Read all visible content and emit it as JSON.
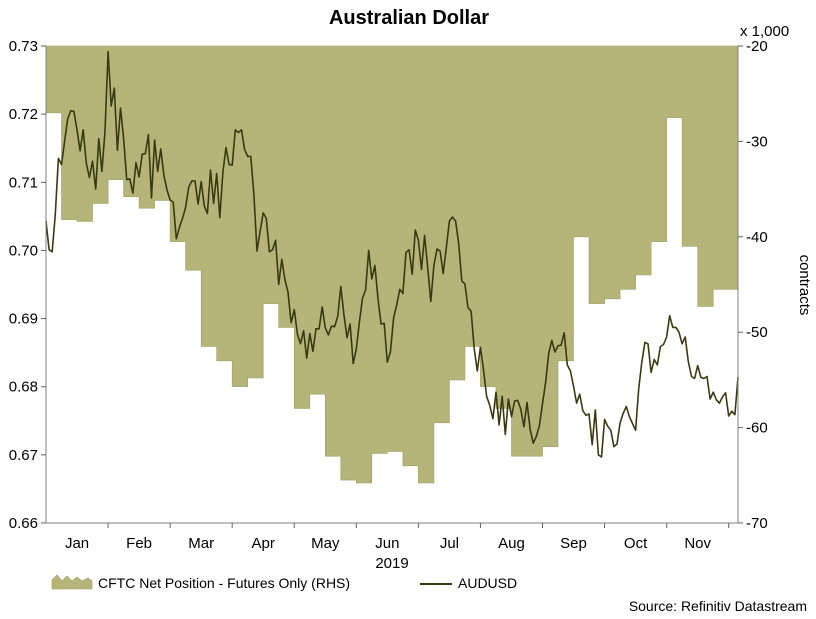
{
  "chart_data": {
    "type": "area+line",
    "title": "Australian Dollar",
    "year_label": "2019",
    "rhs_unit_label": "x 1,000",
    "rhs_axis_label": "contracts",
    "source": "Source: Refinitiv Datastream",
    "x_range": [
      0,
      11.15
    ],
    "x_ticks": [
      "Jan",
      "Feb",
      "Mar",
      "Apr",
      "May",
      "Jun",
      "Jul",
      "Aug",
      "Sep",
      "Oct",
      "Nov"
    ],
    "lhs": {
      "range": [
        0.66,
        0.73
      ],
      "ticks": [
        "0.73",
        "0.72",
        "0.71",
        "0.70",
        "0.69",
        "0.68",
        "0.67",
        "0.66"
      ],
      "tick_values": [
        0.73,
        0.72,
        0.71,
        0.7,
        0.69,
        0.68,
        0.67,
        0.66
      ]
    },
    "rhs": {
      "range": [
        -70,
        -20
      ],
      "ticks": [
        "-20",
        "-30",
        "-40",
        "-50",
        "-60",
        "-70"
      ],
      "tick_values": [
        -20,
        -30,
        -40,
        -50,
        -60,
        -70
      ]
    },
    "colors": {
      "area_fill": "#b5b579",
      "area_edge": "#9e9e5e",
      "line": "#3a3a12",
      "axis": "#808080",
      "tick": "#606060"
    },
    "series": [
      {
        "name": "CFTC Net Position - Futures Only (RHS)",
        "axis": "right",
        "kind": "area",
        "x": [
          0.0,
          0.25,
          0.25,
          0.5,
          0.5,
          0.75,
          0.75,
          1.0,
          1.0,
          1.25,
          1.25,
          1.5,
          1.5,
          1.75,
          1.75,
          2.0,
          2.0,
          2.25,
          2.25,
          2.5,
          2.5,
          2.75,
          2.75,
          3.0,
          3.0,
          3.25,
          3.25,
          3.5,
          3.5,
          3.75,
          3.75,
          4.0,
          4.0,
          4.25,
          4.25,
          4.5,
          4.5,
          4.75,
          4.75,
          5.0,
          5.0,
          5.25,
          5.25,
          5.5,
          5.5,
          5.75,
          5.75,
          6.0,
          6.0,
          6.25,
          6.25,
          6.5,
          6.5,
          6.75,
          6.75,
          7.0,
          7.0,
          7.25,
          7.25,
          7.5,
          7.5,
          7.75,
          7.75,
          8.0,
          8.0,
          8.25,
          8.25,
          8.5,
          8.5,
          8.75,
          8.75,
          9.0,
          9.0,
          9.25,
          9.25,
          9.5,
          9.5,
          9.75,
          9.75,
          10.0,
          10.0,
          10.25,
          10.25,
          10.5,
          10.5,
          10.75,
          10.75,
          11.0,
          11.0,
          11.15
        ],
        "values": [
          -27.0,
          -27.0,
          -38.2,
          -38.2,
          -38.4,
          -38.4,
          -36.5,
          -36.5,
          -34.0,
          -34.0,
          -35.8,
          -35.8,
          -37.0,
          -37.0,
          -36.2,
          -36.2,
          -40.5,
          -40.5,
          -43.5,
          -43.5,
          -51.5,
          -51.5,
          -53.0,
          -53.0,
          -55.7,
          -55.7,
          -54.8,
          -54.8,
          -47.0,
          -47.0,
          -49.5,
          -49.5,
          -58.0,
          -58.0,
          -56.5,
          -56.5,
          -63.0,
          -63.0,
          -65.5,
          -65.5,
          -65.8,
          -65.8,
          -62.7,
          -62.7,
          -62.5,
          -62.5,
          -64.0,
          -64.0,
          -65.8,
          -65.8,
          -59.5,
          -59.5,
          -55.0,
          -55.0,
          -51.5,
          -51.5,
          -55.7,
          -55.7,
          -58.0,
          -58.0,
          -63.0,
          -63.0,
          -63.0,
          -63.0,
          -62.0,
          -62.0,
          -53.0,
          -53.0,
          -40.0,
          -40.0,
          -47.0,
          -47.0,
          -46.5,
          -46.5,
          -45.5,
          -45.5,
          -44.0,
          -44.0,
          -40.5,
          -40.5,
          -27.5,
          -27.5,
          -41.0,
          -41.0,
          -47.3,
          -47.3,
          -45.5,
          -45.5,
          -45.5,
          -45.5
        ]
      },
      {
        "name": "AUDUSD",
        "axis": "left",
        "kind": "line",
        "x": [
          0.0,
          0.05,
          0.1,
          0.15,
          0.2,
          0.25,
          0.3,
          0.35,
          0.4,
          0.45,
          0.5,
          0.55,
          0.6,
          0.65,
          0.7,
          0.75,
          0.8,
          0.85,
          0.9,
          0.95,
          1.0,
          1.05,
          1.1,
          1.15,
          1.2,
          1.25,
          1.3,
          1.35,
          1.4,
          1.45,
          1.5,
          1.55,
          1.6,
          1.65,
          1.7,
          1.75,
          1.8,
          1.85,
          1.9,
          1.95,
          2.0,
          2.05,
          2.1,
          2.15,
          2.2,
          2.25,
          2.3,
          2.35,
          2.4,
          2.45,
          2.5,
          2.55,
          2.6,
          2.65,
          2.7,
          2.75,
          2.8,
          2.85,
          2.9,
          2.95,
          3.0,
          3.05,
          3.1,
          3.15,
          3.2,
          3.25,
          3.3,
          3.35,
          3.4,
          3.45,
          3.5,
          3.55,
          3.6,
          3.65,
          3.7,
          3.75,
          3.8,
          3.85,
          3.9,
          3.95,
          4.0,
          4.05,
          4.1,
          4.15,
          4.2,
          4.25,
          4.3,
          4.35,
          4.4,
          4.45,
          4.5,
          4.55,
          4.6,
          4.65,
          4.7,
          4.75,
          4.8,
          4.85,
          4.9,
          4.95,
          5.0,
          5.05,
          5.1,
          5.15,
          5.2,
          5.25,
          5.3,
          5.35,
          5.4,
          5.45,
          5.5,
          5.55,
          5.6,
          5.65,
          5.7,
          5.75,
          5.8,
          5.85,
          5.9,
          5.95,
          6.0,
          6.05,
          6.1,
          6.15,
          6.2,
          6.25,
          6.3,
          6.35,
          6.4,
          6.45,
          6.5,
          6.55,
          6.6,
          6.65,
          6.7,
          6.75,
          6.8,
          6.85,
          6.9,
          6.95,
          7.0,
          7.05,
          7.1,
          7.15,
          7.2,
          7.25,
          7.3,
          7.35,
          7.4,
          7.45,
          7.5,
          7.55,
          7.6,
          7.65,
          7.7,
          7.75,
          7.8,
          7.85,
          7.9,
          7.95,
          8.0,
          8.05,
          8.1,
          8.15,
          8.2,
          8.25,
          8.3,
          8.35,
          8.4,
          8.45,
          8.5,
          8.55,
          8.6,
          8.65,
          8.7,
          8.75,
          8.8,
          8.85,
          8.9,
          8.95,
          9.0,
          9.05,
          9.1,
          9.15,
          9.2,
          9.25,
          9.3,
          9.35,
          9.4,
          9.45,
          9.5,
          9.55,
          9.6,
          9.65,
          9.7,
          9.75,
          9.8,
          9.85,
          9.9,
          9.95,
          10.0,
          10.05,
          10.1,
          10.15,
          10.2,
          10.25,
          10.3,
          10.35,
          10.4,
          10.45,
          10.5,
          10.55,
          10.6,
          10.65,
          10.7,
          10.75,
          10.8,
          10.85,
          10.9,
          10.95,
          11.0,
          11.05,
          11.1,
          11.15
        ],
        "values": [
          0.7043,
          0.7001,
          0.6998,
          0.7053,
          0.7135,
          0.7126,
          0.716,
          0.7193,
          0.7205,
          0.7204,
          0.7177,
          0.7146,
          0.7177,
          0.7128,
          0.7107,
          0.7131,
          0.709,
          0.7164,
          0.7116,
          0.7175,
          0.7292,
          0.7212,
          0.7238,
          0.7147,
          0.7209,
          0.7165,
          0.7104,
          0.7105,
          0.7084,
          0.7129,
          0.7108,
          0.7141,
          0.7142,
          0.717,
          0.7077,
          0.7162,
          0.7116,
          0.7149,
          0.711,
          0.7089,
          0.7074,
          0.7071,
          0.7017,
          0.7034,
          0.7047,
          0.7063,
          0.7093,
          0.7102,
          0.7102,
          0.7068,
          0.7101,
          0.7065,
          0.7054,
          0.7118,
          0.7069,
          0.7113,
          0.7048,
          0.7115,
          0.7151,
          0.7126,
          0.7125,
          0.7177,
          0.7173,
          0.7177,
          0.7148,
          0.7138,
          0.7138,
          0.7082,
          0.6999,
          0.7028,
          0.7055,
          0.7047,
          0.6998,
          0.7001,
          0.7015,
          0.695,
          0.6987,
          0.6957,
          0.6939,
          0.6894,
          0.6913,
          0.6877,
          0.6863,
          0.6882,
          0.6842,
          0.6878,
          0.6852,
          0.6885,
          0.6885,
          0.6917,
          0.6886,
          0.6876,
          0.6889,
          0.6888,
          0.6903,
          0.6947,
          0.6906,
          0.6872,
          0.6892,
          0.6834,
          0.6855,
          0.6895,
          0.693,
          0.6942,
          0.7,
          0.6958,
          0.6978,
          0.6929,
          0.6892,
          0.6893,
          0.6836,
          0.6851,
          0.6901,
          0.692,
          0.6943,
          0.6937,
          0.6997,
          0.7001,
          0.6965,
          0.703,
          0.7015,
          0.6972,
          0.7022,
          0.6975,
          0.6925,
          0.6978,
          0.7002,
          0.6999,
          0.6966,
          0.7004,
          0.7043,
          0.7049,
          0.7043,
          0.701,
          0.6955,
          0.6951,
          0.6916,
          0.6911,
          0.6856,
          0.6823,
          0.6858,
          0.6825,
          0.6786,
          0.6773,
          0.6753,
          0.6792,
          0.6744,
          0.6786,
          0.673,
          0.6782,
          0.6756,
          0.6779,
          0.678,
          0.6767,
          0.6741,
          0.6777,
          0.6738,
          0.6717,
          0.6727,
          0.6743,
          0.6775,
          0.6806,
          0.6849,
          0.6868,
          0.6851,
          0.686,
          0.6861,
          0.6879,
          0.6832,
          0.6823,
          0.6801,
          0.6776,
          0.6789,
          0.6765,
          0.6758,
          0.676,
          0.6715,
          0.6766,
          0.67,
          0.6697,
          0.6752,
          0.6742,
          0.6736,
          0.6712,
          0.6716,
          0.6747,
          0.6761,
          0.6771,
          0.6756,
          0.6746,
          0.6736,
          0.6797,
          0.6836,
          0.6865,
          0.6863,
          0.6821,
          0.684,
          0.6832,
          0.6859,
          0.6862,
          0.6873,
          0.6904,
          0.6887,
          0.6887,
          0.688,
          0.6863,
          0.6873,
          0.6837,
          0.6815,
          0.6812,
          0.6831,
          0.6814,
          0.6812,
          0.6815,
          0.6782,
          0.6792,
          0.6781,
          0.6776,
          0.6785,
          0.6791,
          0.6757,
          0.6764,
          0.6759,
          0.6814
        ]
      }
    ],
    "legend": [
      {
        "label": "CFTC Net Position - Futures Only (RHS)",
        "kind": "area"
      },
      {
        "label": "AUDUSD",
        "kind": "line"
      }
    ]
  }
}
